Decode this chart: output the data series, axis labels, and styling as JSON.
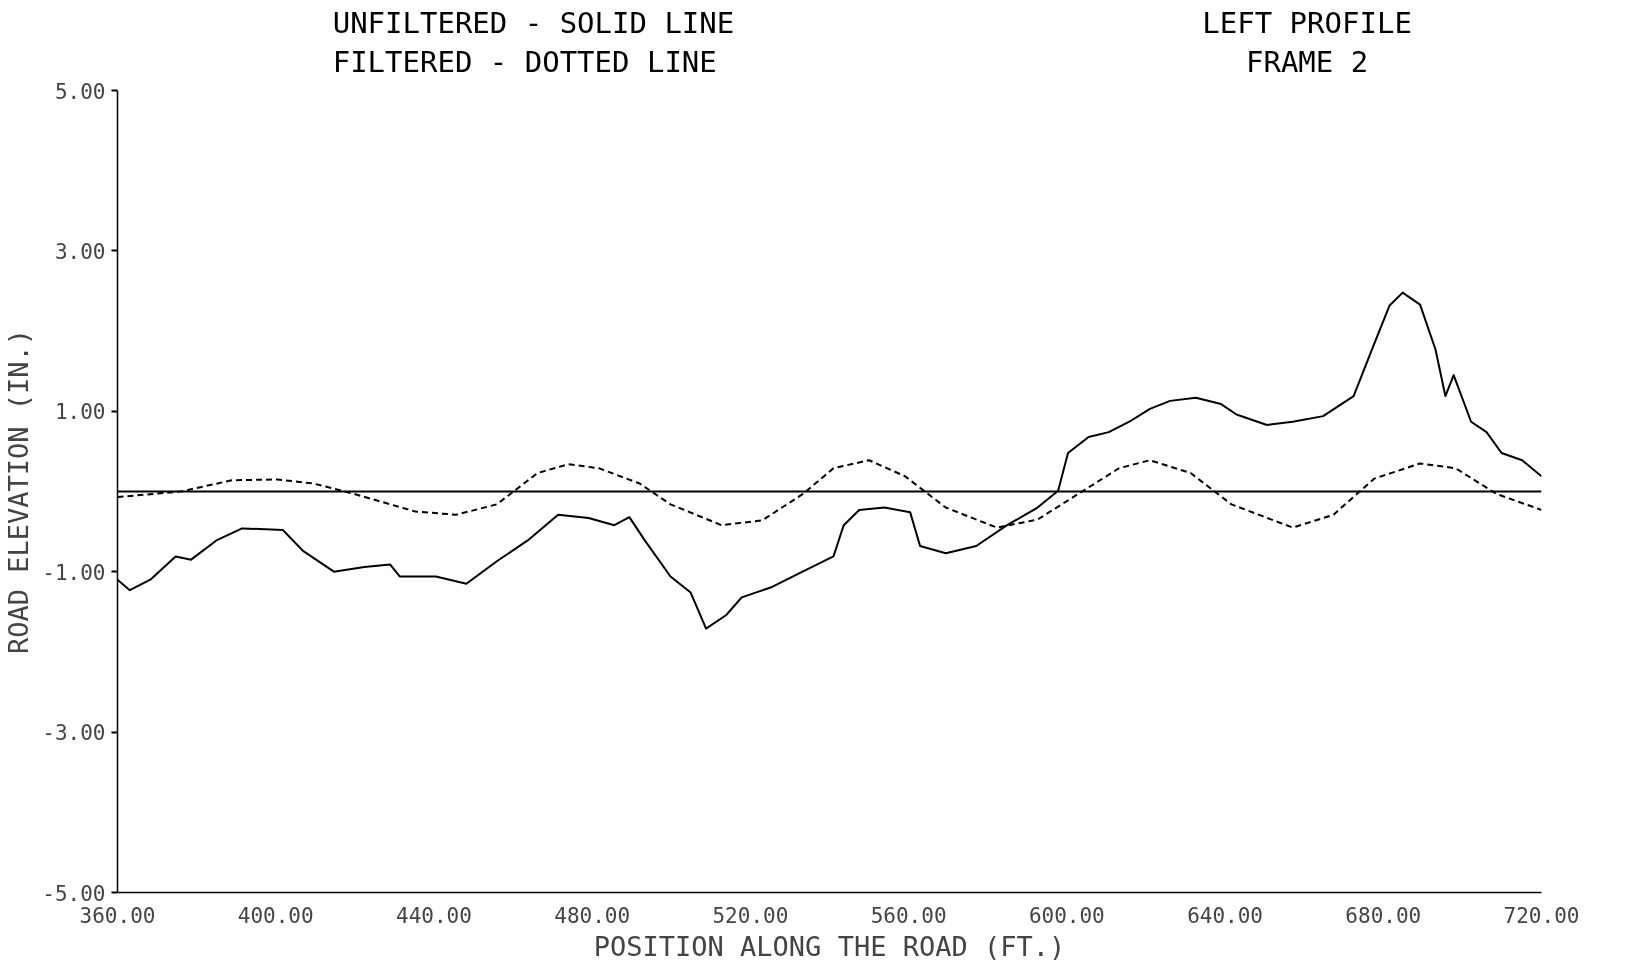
{
  "chart_data": {
    "type": "line",
    "xlabel": "POSITION ALONG THE ROAD (FT.)",
    "ylabel": "ROAD ELEVATION (IN.)",
    "annotations": [
      "UNFILTERED - SOLID LINE",
      "FILTERED - DOTTED LINE",
      "LEFT PROFILE",
      "FRAME 2"
    ],
    "xlim": [
      360,
      720
    ],
    "ylim": [
      -5,
      5
    ],
    "xticks": [
      {
        "value": 360,
        "label": "360.00"
      },
      {
        "value": 400,
        "label": "400.00"
      },
      {
        "value": 440,
        "label": "440.00"
      },
      {
        "value": 480,
        "label": "480.00"
      },
      {
        "value": 520,
        "label": "520.00"
      },
      {
        "value": 560,
        "label": "560.00"
      },
      {
        "value": 600,
        "label": "600.00"
      },
      {
        "value": 640,
        "label": "640.00"
      },
      {
        "value": 680,
        "label": "680.00"
      },
      {
        "value": 720,
        "label": "720.00"
      }
    ],
    "yticks": [
      {
        "value": -5,
        "label": "-5.00"
      },
      {
        "value": -3,
        "label": "-3.00"
      },
      {
        "value": -1,
        "label": "-1.00"
      },
      {
        "value": 1,
        "label": "1.00"
      },
      {
        "value": 3,
        "label": "3.00"
      },
      {
        "value": 5,
        "label": "5.00"
      }
    ],
    "grid": false,
    "marker": "none",
    "ref_lines": [
      {
        "axis": "y",
        "value": 0,
        "color": "#000000"
      }
    ],
    "series": [
      {
        "color": "#000000",
        "line_style": "solid",
        "x": [
          360,
          363.1,
          368.3,
          374.7,
          378.6,
          385.0,
          391.5,
          401.8,
          406.9,
          414.7,
          422.4,
          428.9,
          431.4,
          440.5,
          448.2,
          455.9,
          463.7,
          471.4,
          479.1,
          485.6,
          489.4,
          493.3,
          499.8,
          504.9,
          508.8,
          513.9,
          517.8,
          525.5,
          533.2,
          541.0,
          543.6,
          547.5,
          553.9,
          560.4,
          562.9,
          569.4,
          577.1,
          584.9,
          592.6,
          597.8,
          600.3,
          605.5,
          610.6,
          615.8,
          621.0,
          626.1,
          632.6,
          639.0,
          642.9,
          650.6,
          657.1,
          664.8,
          672.5,
          677.7,
          681.6,
          684.9,
          689.3,
          693.2,
          695.7,
          697.8,
          702.2,
          706.1,
          709.9,
          715.1,
          720
        ],
        "values": [
          -1.1,
          -1.23,
          -1.1,
          -0.81,
          -0.85,
          -0.61,
          -0.46,
          -0.48,
          -0.74,
          -1.0,
          -0.94,
          -0.91,
          -1.06,
          -1.06,
          -1.15,
          -0.87,
          -0.61,
          -0.29,
          -0.33,
          -0.42,
          -0.32,
          -0.61,
          -1.06,
          -1.26,
          -1.71,
          -1.54,
          -1.32,
          -1.19,
          -1.0,
          -0.81,
          -0.42,
          -0.23,
          -0.2,
          -0.26,
          -0.68,
          -0.77,
          -0.68,
          -0.42,
          -0.2,
          0.01,
          0.48,
          0.68,
          0.74,
          0.87,
          1.03,
          1.13,
          1.17,
          1.09,
          0.96,
          0.83,
          0.87,
          0.94,
          1.19,
          1.84,
          2.32,
          2.48,
          2.33,
          1.77,
          1.19,
          1.45,
          0.87,
          0.74,
          0.48,
          0.39,
          0.19
        ]
      },
      {
        "color": "#000000",
        "line_style": "dashed",
        "x": [
          360,
          376.0,
          388.9,
          400.5,
          409.5,
          419.8,
          435.3,
          445.6,
          455.9,
          466.2,
          474.0,
          481.7,
          492.0,
          499.8,
          512.7,
          523.0,
          533.3,
          541.0,
          550.0,
          559.1,
          569.4,
          582.3,
          592.6,
          602.9,
          613.2,
          621.0,
          631.3,
          641.6,
          657.1,
          667.4,
          677.7,
          689.3,
          698.3,
          708.6,
          720
        ],
        "values": [
          -0.07,
          0.0,
          0.14,
          0.15,
          0.1,
          -0.03,
          -0.25,
          -0.29,
          -0.16,
          0.23,
          0.34,
          0.29,
          0.1,
          -0.16,
          -0.42,
          -0.36,
          -0.03,
          0.29,
          0.39,
          0.19,
          -0.2,
          -0.45,
          -0.35,
          -0.03,
          0.29,
          0.39,
          0.23,
          -0.16,
          -0.45,
          -0.29,
          0.16,
          0.35,
          0.29,
          -0.03,
          -0.23
        ]
      }
    ]
  }
}
